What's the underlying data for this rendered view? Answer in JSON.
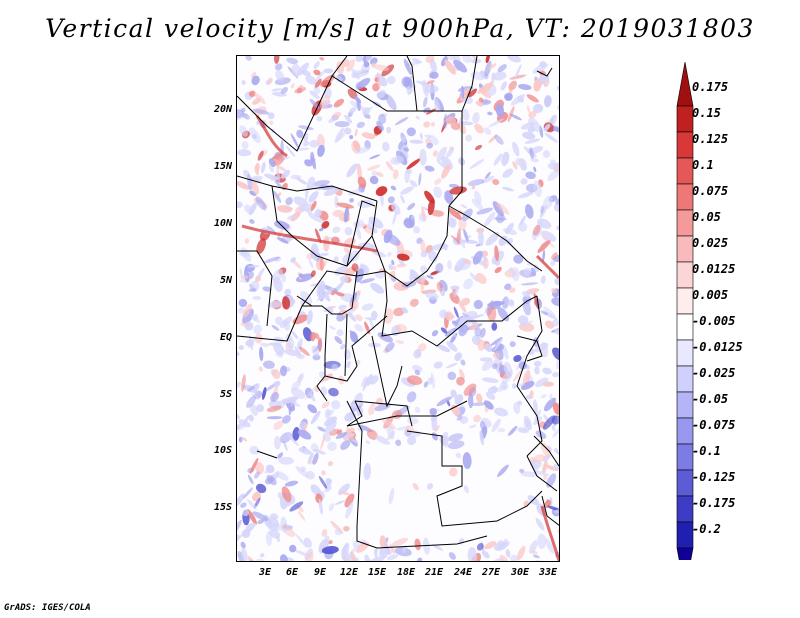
{
  "title": "Vertical velocity [m/s] at 900hPa, VT: 2019031803",
  "footer": "GrADS: IGES/COLA",
  "map": {
    "lat_ticks": [
      "20N",
      "15N",
      "10N",
      "5N",
      "EQ",
      "5S",
      "10S",
      "15S"
    ],
    "lon_ticks": [
      "3E",
      "6E",
      "9E",
      "12E",
      "15E",
      "18E",
      "21E",
      "24E",
      "27E",
      "30E",
      "33E"
    ]
  },
  "colorbar": {
    "levels": [
      "0.175",
      "0.15",
      "0.125",
      "0.1",
      "0.075",
      "0.05",
      "0.025",
      "0.0125",
      "0.005",
      "-0.005",
      "-0.0125",
      "-0.025",
      "-0.05",
      "-0.075",
      "-0.1",
      "-0.125",
      "-0.175",
      "-0.2"
    ],
    "colors": [
      "#a01010",
      "#c02020",
      "#d83838",
      "#e45858",
      "#ee7878",
      "#f49a9a",
      "#f8baba",
      "#fcd6d6",
      "#ffecec",
      "#ffffff",
      "#e8e8ff",
      "#d0d0fc",
      "#b4b4f6",
      "#9898ee",
      "#7c7ce4",
      "#5c5cd6",
      "#3c3cc6",
      "#2020b0",
      "#100098"
    ]
  },
  "field_colors": {
    "pos_strong": "#d03030",
    "pos_mid": "#f08a8a",
    "pos_weak": "#fbc8c8",
    "neg_weak": "#d6d6fb",
    "neg_mid": "#a8a8f0",
    "neg_strong": "#5050d0"
  }
}
